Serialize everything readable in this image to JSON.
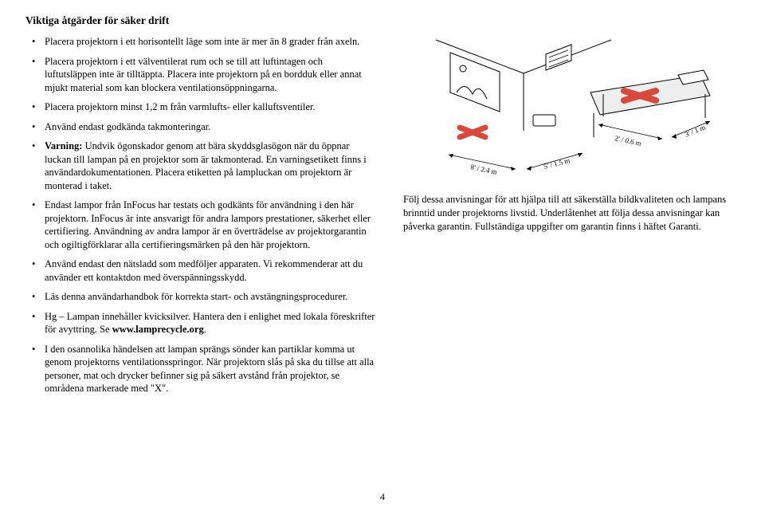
{
  "title": "Viktiga åtgärder för säker drift",
  "bullets": [
    {
      "text": "Placera projektorn i ett horisontellt läge som inte är mer än 8 grader från axeln."
    },
    {
      "text": "Placera projektorn i ett välventilerat rum och se till att luftintagen och luftutsläppen inte är tilltäppta. Placera inte projektorn på en bordduk eller annat mjukt material som kan blockera ventilationsöppningarna."
    },
    {
      "text": "Placera projektorn minst 1,2 m från varmlufts- eller kalluftsventiler."
    },
    {
      "text": "Använd endast godkända takmonteringar."
    },
    {
      "lead": "Varning:",
      "text": " Undvik ögonskador genom att bära skyddsglasögon när du öppnar luckan till lampan på en projektor som är takmonterad. En varningsetikett finns i användardokumentationen. Placera etiketten på lampluckan om projektorn är monterad i taket."
    },
    {
      "text": "Endast lampor från InFocus har testats och godkänts för användning i den här projektorn. InFocus är inte ansvarigt för andra lampors prestationer, säkerhet eller certifiering. Användning av andra lampor är en överträdelse av projektorgarantin och ogiltigförklarar alla certifieringsmärken på den här projektorn."
    },
    {
      "text": "Använd endast den nätsladd som medföljer apparaten. Vi rekommenderar att du använder ett kontaktdon med överspänningsskydd."
    },
    {
      "text": "Läs denna användarhandbok för korrekta start- och avstängningsprocedurer."
    },
    {
      "pre": "Hg – Lampan innehåller kvicksilver. Hantera den i enlighet med lokala föreskrifter för avyttring. Se ",
      "boldlink": "www.lamprecycle.org",
      "post": "."
    },
    {
      "text": "I den osannolika händelsen att lampan sprängs sönder kan partiklar komma ut genom projektorns ventilationsspringor. När projektorn slås på ska du tillse att alla personer, mat och drycker befinner sig på säkert avstånd från projektor, se områdena markerade med \"X\"."
    }
  ],
  "right_paragraph": "Följ dessa anvisningar för att hjälpa till att säkerställa bildkvaliteten och lampans brinntid under projektorns livstid. Underlåtenhet att följa dessa anvisningar kan påverka garantin. Fullständiga uppgifter om garantin finns i häftet Garanti.",
  "page_number": "4",
  "diagram": {
    "dim_left": "8' / 2.4 m",
    "dim_mid": "5' / 1.5 m",
    "dim_right_front": "2' / 0.6 m",
    "dim_right_side": "3' / 1 m",
    "x_color": "#d9483b",
    "table_fill": "#eeeeee",
    "stroke": "#000000"
  }
}
